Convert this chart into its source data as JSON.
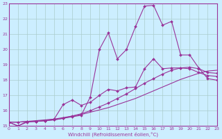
{
  "xlabel": "Windchill (Refroidissement éolien,°C)",
  "background_color": "#cceeff",
  "grid_color": "#aacccc",
  "line_color": "#993399",
  "xlim": [
    0,
    23
  ],
  "ylim": [
    15,
    23
  ],
  "yticks": [
    15,
    16,
    17,
    18,
    19,
    20,
    21,
    22,
    23
  ],
  "xticks": [
    0,
    1,
    2,
    3,
    4,
    5,
    6,
    7,
    8,
    9,
    10,
    11,
    12,
    13,
    14,
    15,
    16,
    17,
    18,
    19,
    20,
    21,
    22,
    23
  ],
  "series": [
    {
      "x": [
        0,
        1,
        2,
        3,
        4,
        5,
        6,
        7,
        8,
        9,
        10,
        11,
        12,
        13,
        14,
        15,
        16,
        17,
        18,
        19,
        20,
        21,
        22,
        23
      ],
      "y": [
        15.25,
        15.25,
        15.3,
        15.35,
        15.4,
        15.45,
        15.55,
        15.65,
        15.75,
        15.9,
        16.05,
        16.2,
        16.4,
        16.6,
        16.8,
        17.05,
        17.3,
        17.55,
        17.8,
        18.05,
        18.25,
        18.45,
        18.6,
        18.65
      ],
      "marker": false,
      "linestyle": "-"
    },
    {
      "x": [
        0,
        1,
        2,
        3,
        4,
        5,
        6,
        7,
        8,
        9,
        10,
        11,
        12,
        13,
        14,
        15,
        16,
        17,
        18,
        19,
        20,
        21,
        22,
        23
      ],
      "y": [
        15.25,
        15.25,
        15.3,
        15.3,
        15.35,
        15.4,
        15.5,
        15.65,
        15.8,
        16.0,
        16.25,
        16.5,
        16.8,
        17.1,
        17.45,
        17.8,
        18.1,
        18.4,
        18.65,
        18.8,
        18.85,
        18.75,
        18.5,
        18.45
      ],
      "marker": true,
      "linestyle": "-"
    },
    {
      "x": [
        0,
        1,
        2,
        3,
        4,
        5,
        6,
        7,
        8,
        9,
        10,
        11,
        12,
        13,
        14,
        15,
        16,
        17,
        18,
        19,
        20,
        21,
        22,
        23
      ],
      "y": [
        15.25,
        15.0,
        15.25,
        15.3,
        15.35,
        15.45,
        16.4,
        16.7,
        16.35,
        16.55,
        17.0,
        17.4,
        17.3,
        17.5,
        17.55,
        18.75,
        19.4,
        18.75,
        18.8,
        18.8,
        18.75,
        18.5,
        18.3,
        18.25
      ],
      "marker": true,
      "linestyle": "-"
    },
    {
      "x": [
        0,
        1,
        2,
        3,
        4,
        5,
        6,
        7,
        8,
        9,
        10,
        11,
        12,
        13,
        14,
        15,
        16,
        17,
        18,
        19,
        20,
        21,
        22,
        23
      ],
      "y": [
        15.25,
        15.0,
        15.3,
        15.3,
        15.35,
        15.4,
        15.5,
        15.6,
        15.7,
        16.9,
        20.0,
        21.1,
        19.4,
        20.0,
        21.5,
        22.85,
        22.9,
        21.6,
        21.85,
        19.65,
        19.65,
        18.8,
        18.1,
        18.0
      ],
      "marker": true,
      "linestyle": "-"
    }
  ]
}
